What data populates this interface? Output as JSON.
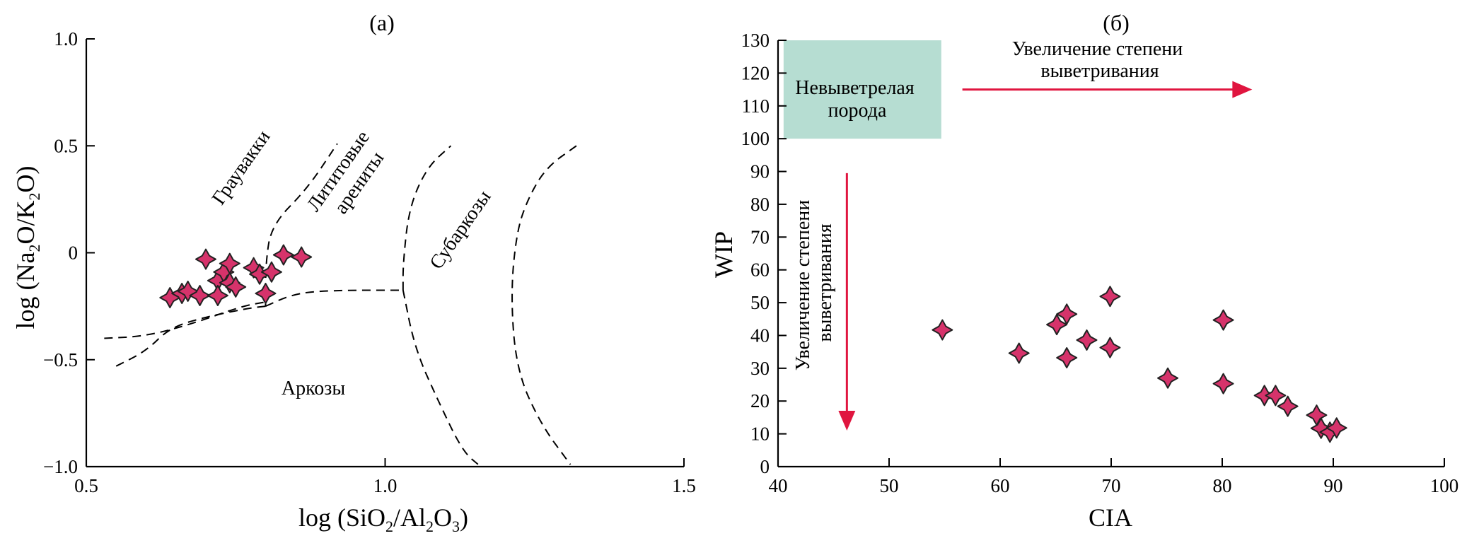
{
  "chart_data": [
    {
      "panel": "(a)",
      "type": "scatter",
      "xlabel": "log (SiO2/Al2O3)",
      "ylabel": "log (Na2O/K2O)",
      "xlim": [
        0.5,
        1.5
      ],
      "ylim": [
        -1.0,
        1.0
      ],
      "x_ticks": [
        "0.5",
        "1.0",
        "1.5"
      ],
      "y_ticks": [
        "1.0",
        "0.5",
        "0",
        "−0.5",
        "−1.0"
      ],
      "grid": false,
      "marker": "four-point star",
      "marker_color": "#d6336b",
      "points": [
        {
          "x": 0.64,
          "y": -0.21
        },
        {
          "x": 0.66,
          "y": -0.19
        },
        {
          "x": 0.67,
          "y": -0.18
        },
        {
          "x": 0.69,
          "y": -0.2
        },
        {
          "x": 0.7,
          "y": -0.03
        },
        {
          "x": 0.72,
          "y": -0.13
        },
        {
          "x": 0.72,
          "y": -0.2
        },
        {
          "x": 0.73,
          "y": -0.09
        },
        {
          "x": 0.74,
          "y": -0.05
        },
        {
          "x": 0.74,
          "y": -0.14
        },
        {
          "x": 0.75,
          "y": -0.16
        },
        {
          "x": 0.78,
          "y": -0.07
        },
        {
          "x": 0.79,
          "y": -0.1
        },
        {
          "x": 0.8,
          "y": -0.19
        },
        {
          "x": 0.81,
          "y": -0.09
        },
        {
          "x": 0.83,
          "y": -0.01
        },
        {
          "x": 0.86,
          "y": -0.02
        }
      ],
      "regions": [
        {
          "label": "Граувакки"
        },
        {
          "label": "Лититовые\nарениты"
        },
        {
          "label": "Субаркозы"
        },
        {
          "label": "Аркозы"
        }
      ],
      "boundaries": [
        {
          "style": "dashed",
          "points": [
            [
              0.53,
              -0.4
            ],
            [
              0.6,
              -0.39
            ],
            [
              0.68,
              -0.33
            ],
            [
              0.76,
              -0.25
            ],
            [
              0.8,
              -0.23
            ]
          ]
        },
        {
          "style": "dashed",
          "points": [
            [
              0.55,
              -0.53
            ],
            [
              0.6,
              -0.46
            ],
            [
              0.64,
              -0.35
            ],
            [
              0.7,
              -0.3
            ],
            [
              0.77,
              -0.26
            ],
            [
              0.8,
              -0.25
            ]
          ]
        },
        {
          "style": "dashed",
          "points": [
            [
              0.8,
              -0.25
            ],
            [
              0.84,
              -0.2
            ],
            [
              0.88,
              -0.18
            ],
            [
              0.95,
              -0.175
            ],
            [
              1.03,
              -0.175
            ]
          ]
        },
        {
          "style": "dashed",
          "points": [
            [
              0.8,
              -0.25
            ],
            [
              0.8,
              -0.05
            ],
            [
              0.81,
              0.13
            ],
            [
              0.87,
              0.3
            ],
            [
              0.92,
              0.51
            ]
          ]
        },
        {
          "style": "dashed",
          "points": [
            [
              1.03,
              -0.175
            ],
            [
              1.03,
              -0.05
            ],
            [
              1.04,
              0.21
            ],
            [
              1.07,
              0.4
            ],
            [
              1.11,
              0.5
            ]
          ]
        },
        {
          "style": "dashed",
          "points": [
            [
              1.03,
              -0.175
            ],
            [
              1.05,
              -0.45
            ],
            [
              1.09,
              -0.7
            ],
            [
              1.13,
              -0.93
            ],
            [
              1.16,
              -1.0
            ]
          ]
        },
        {
          "style": "dashed",
          "points": [
            [
              1.32,
              0.5
            ],
            [
              1.27,
              0.4
            ],
            [
              1.24,
              0.26
            ],
            [
              1.22,
              0.1
            ],
            [
              1.21,
              -0.2
            ],
            [
              1.22,
              -0.55
            ],
            [
              1.26,
              -0.8
            ],
            [
              1.31,
              -0.99
            ]
          ]
        }
      ]
    },
    {
      "panel": "(б)",
      "type": "scatter",
      "xlabel": "CIA",
      "ylabel": "WIP",
      "xlim": [
        40,
        100
      ],
      "ylim": [
        0,
        130
      ],
      "x_ticks": [
        "40",
        "50",
        "60",
        "70",
        "80",
        "90",
        "100"
      ],
      "y_ticks": [
        "0",
        "10",
        "20",
        "30",
        "40",
        "50",
        "60",
        "70",
        "80",
        "90",
        "100",
        "110",
        "120",
        "130"
      ],
      "grid": false,
      "marker": "four-point star",
      "marker_color": "#d6336b",
      "points": [
        {
          "x": 54.8,
          "y": 41.7
        },
        {
          "x": 61.7,
          "y": 34.6
        },
        {
          "x": 65.1,
          "y": 43.3
        },
        {
          "x": 66.0,
          "y": 46.5
        },
        {
          "x": 66.0,
          "y": 33.2
        },
        {
          "x": 67.8,
          "y": 38.6
        },
        {
          "x": 69.9,
          "y": 51.9
        },
        {
          "x": 69.9,
          "y": 36.3
        },
        {
          "x": 75.1,
          "y": 27.0
        },
        {
          "x": 80.1,
          "y": 44.7
        },
        {
          "x": 80.1,
          "y": 25.3
        },
        {
          "x": 83.8,
          "y": 21.7
        },
        {
          "x": 84.8,
          "y": 21.7
        },
        {
          "x": 85.9,
          "y": 18.4
        },
        {
          "x": 88.5,
          "y": 15.7
        },
        {
          "x": 88.9,
          "y": 11.7
        },
        {
          "x": 89.7,
          "y": 10.5
        },
        {
          "x": 90.3,
          "y": 11.8
        }
      ],
      "shaded_region": {
        "label": "Невыветрелая\nпорода",
        "color": "#b6ddd2",
        "x_range": [
          40.5,
          54.7
        ],
        "y_range": [
          100,
          130
        ]
      },
      "annotations": [
        {
          "text": "Увеличение степени\nвыветривания",
          "direction": "right",
          "arrow_color": "#e0153f",
          "arrow_from": [
            56.6,
            115
          ],
          "arrow_to": [
            82.7,
            115
          ]
        },
        {
          "text": "Увеличение степени\nвыветривания",
          "direction": "down",
          "arrow_color": "#e0153f",
          "arrow_from": [
            46.2,
            89.5
          ],
          "arrow_to": [
            46.2,
            11
          ]
        }
      ]
    }
  ]
}
